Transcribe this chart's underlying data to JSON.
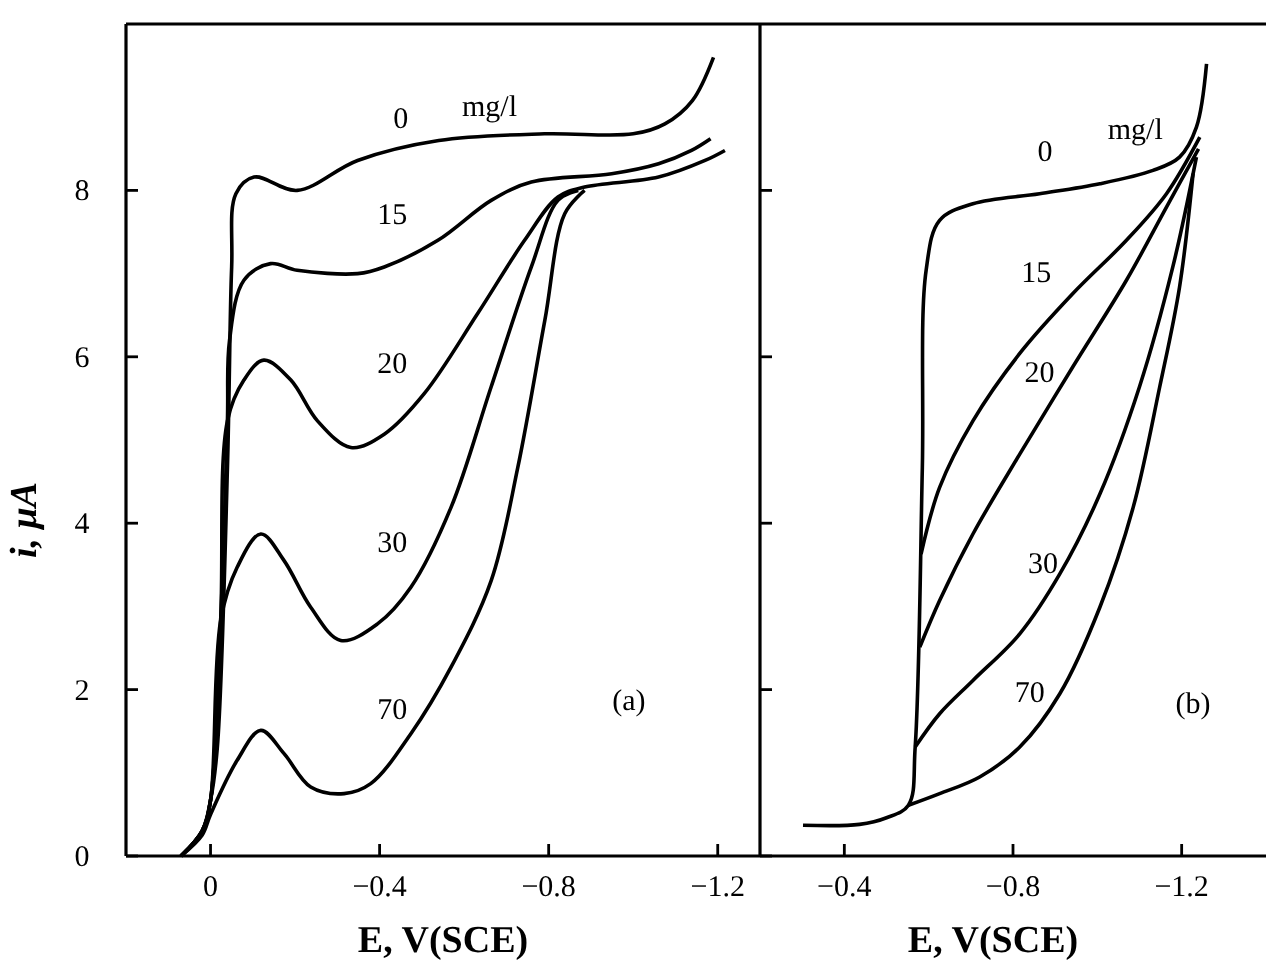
{
  "chart_data": [
    {
      "type": "line",
      "ylabel": "i, μA",
      "xlabel": "E, V(SCE)",
      "xlim": [
        0.2,
        -1.3
      ],
      "xticks": [
        0,
        -0.4,
        -0.8,
        -1.2
      ],
      "ylim": [
        0,
        10
      ],
      "yticks": [
        0,
        2,
        4,
        6,
        8
      ],
      "annotations": [
        "mg/l",
        "(a)"
      ],
      "grid": false,
      "series": [
        {
          "name": "0",
          "color": "#000000",
          "x": [
            0.07,
            0.02,
            0.0,
            -0.016,
            -0.04,
            -0.05,
            -0.06,
            -0.103,
            -0.205,
            -0.348,
            -0.54,
            -0.79,
            -1.0,
            -1.075,
            -1.14,
            -1.19
          ],
          "values": [
            0,
            0.3,
            0.67,
            1.3,
            4.67,
            7.08,
            7.96,
            8.16,
            8.0,
            8.36,
            8.6,
            8.68,
            8.68,
            8.8,
            9.08,
            9.6
          ]
        },
        {
          "name": "15",
          "color": "#000000",
          "x": [
            0.07,
            0.02,
            0.0,
            -0.024,
            -0.04,
            -0.045,
            -0.079,
            -0.142,
            -0.205,
            -0.348,
            -0.411,
            -0.538,
            -0.664,
            -0.759,
            -0.949,
            -1.06,
            -1.138,
            -1.183
          ],
          "values": [
            0,
            0.3,
            0.67,
            2.83,
            5.23,
            6.2,
            6.92,
            7.12,
            7.04,
            7.0,
            7.08,
            7.4,
            7.88,
            8.1,
            8.2,
            8.32,
            8.48,
            8.62
          ]
        },
        {
          "name": "20",
          "color": "#000000",
          "x": [
            0.07,
            0.02,
            0.0,
            -0.024,
            -0.04,
            -0.079,
            -0.126,
            -0.19,
            -0.253,
            -0.332,
            -0.411,
            -0.506,
            -0.632,
            -0.743,
            -0.822,
            -0.885,
            -1.06,
            -1.17,
            -1.217
          ],
          "values": [
            0,
            0.3,
            0.67,
            2.83,
            5.23,
            5.72,
            5.96,
            5.72,
            5.23,
            4.91,
            5.07,
            5.56,
            6.52,
            7.4,
            7.92,
            8.04,
            8.16,
            8.36,
            8.48
          ]
        },
        {
          "name": "30",
          "color": "#000000",
          "x": [
            0.07,
            0.02,
            0.0,
            -0.024,
            -0.063,
            -0.119,
            -0.174,
            -0.237,
            -0.308,
            -0.395,
            -0.474,
            -0.569,
            -0.664,
            -0.759,
            -0.822,
            -0.87
          ],
          "values": [
            0,
            0.3,
            0.67,
            2.83,
            3.47,
            3.87,
            3.55,
            2.99,
            2.59,
            2.79,
            3.23,
            4.19,
            5.64,
            7.08,
            7.88,
            8.0
          ]
        },
        {
          "name": "70",
          "color": "#000000",
          "x": [
            0.07,
            0.02,
            0.0,
            -0.063,
            -0.119,
            -0.174,
            -0.237,
            -0.316,
            -0.379,
            -0.474,
            -0.569,
            -0.664,
            -0.727,
            -0.791,
            -0.838,
            -0.885
          ],
          "values": [
            0,
            0.25,
            0.5,
            1.15,
            1.51,
            1.23,
            0.83,
            0.75,
            0.87,
            1.47,
            2.27,
            3.31,
            4.67,
            6.44,
            7.72,
            8.0
          ]
        }
      ]
    },
    {
      "type": "line",
      "xlabel": "E, V(SCE)",
      "xlim": [
        -0.2,
        -1.4
      ],
      "xticks": [
        -0.4,
        -0.8,
        -1.2
      ],
      "ylim": [
        0,
        10
      ],
      "yticks": [
        0,
        2,
        4,
        6,
        8
      ],
      "tick_labels": "x",
      "annotations": [
        "mg/l",
        "(b)"
      ],
      "grid": false,
      "series": [
        {
          "name": "0",
          "color": "#000000",
          "x": [
            -0.302,
            -0.436,
            -0.5,
            -0.552,
            -0.568,
            -0.585,
            -0.594,
            -0.626,
            -0.705,
            -0.863,
            -1.006,
            -1.132,
            -1.195,
            -1.235,
            -1.259
          ],
          "values": [
            0.37,
            0.38,
            0.46,
            0.61,
            1.31,
            4.67,
            7.04,
            7.64,
            7.84,
            7.96,
            8.08,
            8.24,
            8.4,
            8.76,
            9.52
          ]
        },
        {
          "name": "15",
          "color": "#000000",
          "x": [
            -0.582,
            -0.626,
            -0.705,
            -0.816,
            -0.942,
            -1.069,
            -1.164,
            -1.243
          ],
          "values": [
            3.63,
            4.43,
            5.23,
            6.04,
            6.76,
            7.4,
            7.96,
            8.64
          ]
        },
        {
          "name": "20",
          "color": "#000000",
          "x": [
            -0.579,
            -0.626,
            -0.705,
            -0.816,
            -0.942,
            -1.069,
            -1.164,
            -1.24
          ],
          "values": [
            2.51,
            3.07,
            3.87,
            4.83,
            5.88,
            6.92,
            7.8,
            8.5
          ]
        },
        {
          "name": "30",
          "color": "#000000",
          "x": [
            -0.568,
            -0.626,
            -0.705,
            -0.816,
            -0.911,
            -1.006,
            -1.1,
            -1.179,
            -1.235
          ],
          "values": [
            1.31,
            1.71,
            2.11,
            2.67,
            3.39,
            4.35,
            5.64,
            7.08,
            8.4
          ]
        },
        {
          "name": "70",
          "color": "#000000",
          "x": [
            -0.552,
            -0.626,
            -0.721,
            -0.816,
            -0.911,
            -1.006,
            -1.085,
            -1.148,
            -1.195,
            -1.227
          ],
          "values": [
            0.61,
            0.75,
            0.95,
            1.31,
            1.95,
            2.99,
            4.19,
            5.64,
            6.84,
            8.2
          ]
        }
      ]
    }
  ]
}
